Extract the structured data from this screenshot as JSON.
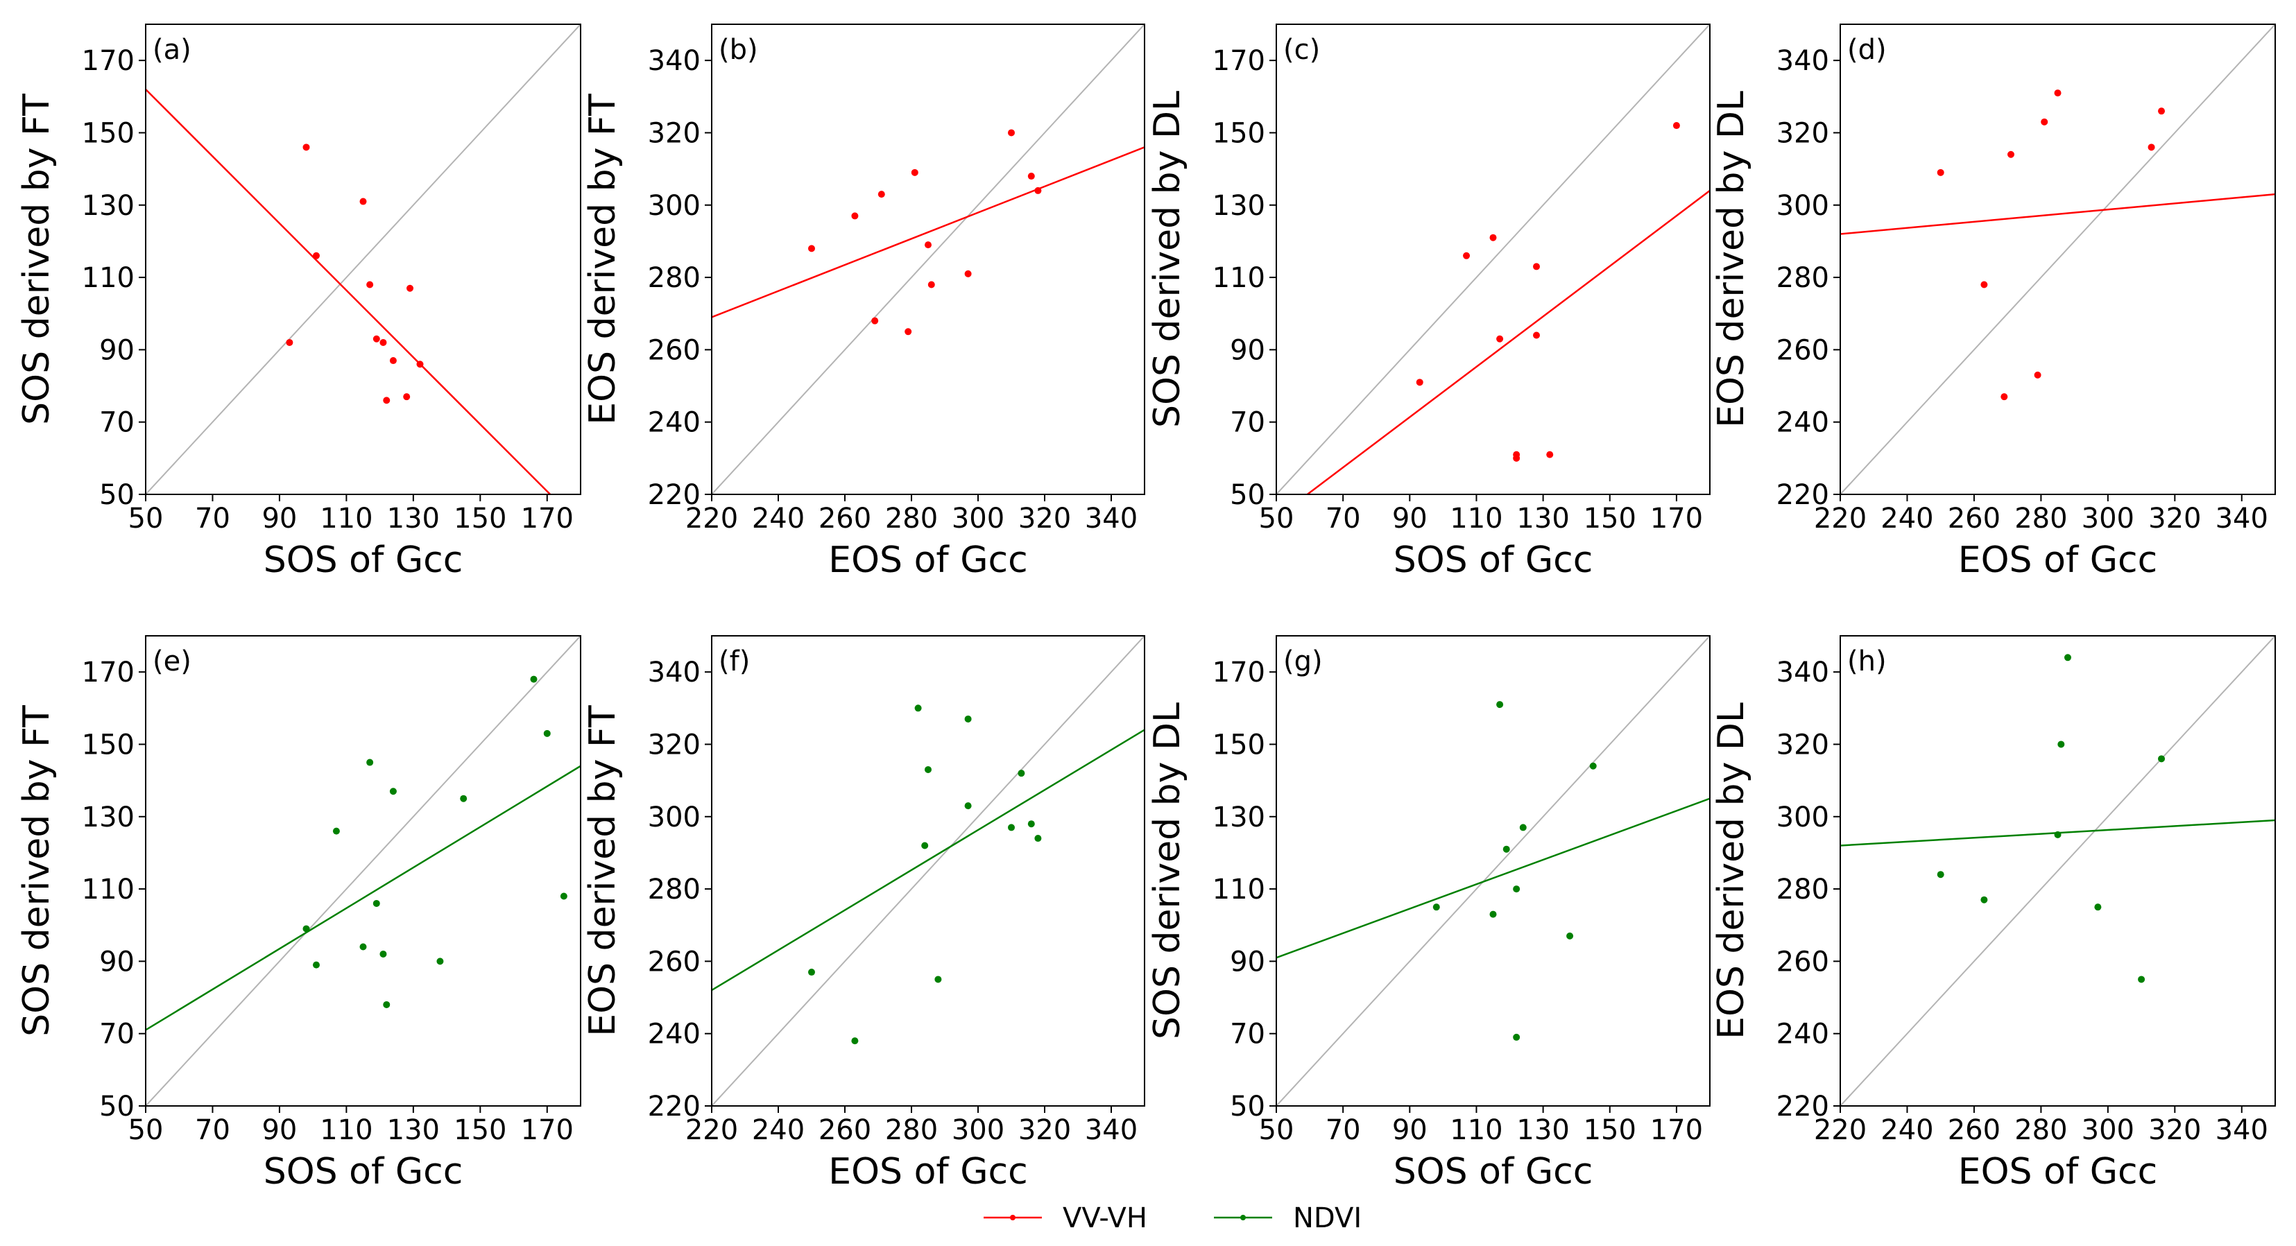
{
  "chart_data": [
    {
      "panel": "(a)",
      "type": "scatter",
      "xlabel": "SOS of Gcc",
      "ylabel": "SOS derived by FT",
      "xlim": [
        50,
        180
      ],
      "ylim": [
        50,
        180
      ],
      "xticks": [
        50,
        70,
        90,
        110,
        130,
        150,
        170
      ],
      "yticks": [
        50,
        70,
        90,
        110,
        130,
        150,
        170
      ],
      "series": "VV-VH",
      "color": "#ff0000",
      "points": [
        [
          93,
          92
        ],
        [
          98,
          146
        ],
        [
          101,
          116
        ],
        [
          115,
          131
        ],
        [
          117,
          108
        ],
        [
          119,
          93
        ],
        [
          121,
          92
        ],
        [
          122,
          76
        ],
        [
          124,
          87
        ],
        [
          128,
          77
        ],
        [
          129,
          107
        ],
        [
          132,
          86
        ]
      ],
      "fit": [
        [
          50,
          162
        ],
        [
          172,
          49
        ]
      ]
    },
    {
      "panel": "(b)",
      "type": "scatter",
      "xlabel": "EOS of Gcc",
      "ylabel": "EOS derived by FT",
      "xlim": [
        220,
        350
      ],
      "ylim": [
        220,
        350
      ],
      "xticks": [
        220,
        240,
        260,
        280,
        300,
        320,
        340
      ],
      "yticks": [
        220,
        240,
        260,
        280,
        300,
        320,
        340
      ],
      "series": "VV-VH",
      "color": "#ff0000",
      "points": [
        [
          250,
          288
        ],
        [
          263,
          297
        ],
        [
          269,
          268
        ],
        [
          271,
          303
        ],
        [
          279,
          265
        ],
        [
          281,
          309
        ],
        [
          285,
          289
        ],
        [
          286,
          278
        ],
        [
          297,
          281
        ],
        [
          310,
          320
        ],
        [
          316,
          308
        ],
        [
          318,
          304
        ]
      ],
      "fit": [
        [
          220,
          269
        ],
        [
          350,
          316
        ]
      ]
    },
    {
      "panel": "(c)",
      "type": "scatter",
      "xlabel": "SOS of Gcc",
      "ylabel": "SOS derived by DL",
      "xlim": [
        50,
        180
      ],
      "ylim": [
        50,
        180
      ],
      "xticks": [
        50,
        70,
        90,
        110,
        130,
        150,
        170
      ],
      "yticks": [
        50,
        70,
        90,
        110,
        130,
        150,
        170
      ],
      "series": "VV-VH",
      "color": "#ff0000",
      "points": [
        [
          93,
          81
        ],
        [
          107,
          116
        ],
        [
          115,
          121
        ],
        [
          117,
          93
        ],
        [
          122,
          61
        ],
        [
          122,
          60
        ],
        [
          128,
          113
        ],
        [
          128,
          94
        ],
        [
          132,
          61
        ],
        [
          170,
          152
        ]
      ],
      "fit": [
        [
          55,
          47
        ],
        [
          180,
          134
        ]
      ]
    },
    {
      "panel": "(d)",
      "type": "scatter",
      "xlabel": "EOS of Gcc",
      "ylabel": "EOS derived by DL",
      "xlim": [
        220,
        350
      ],
      "ylim": [
        220,
        350
      ],
      "xticks": [
        220,
        240,
        260,
        280,
        300,
        320,
        340
      ],
      "yticks": [
        220,
        240,
        260,
        280,
        300,
        320,
        340
      ],
      "series": "VV-VH",
      "color": "#ff0000",
      "points": [
        [
          250,
          309
        ],
        [
          263,
          278
        ],
        [
          269,
          247
        ],
        [
          271,
          314
        ],
        [
          279,
          253
        ],
        [
          281,
          323
        ],
        [
          285,
          331
        ],
        [
          313,
          316
        ],
        [
          316,
          326
        ]
      ],
      "fit": [
        [
          220,
          292
        ],
        [
          350,
          303
        ]
      ]
    },
    {
      "panel": "(e)",
      "type": "scatter",
      "xlabel": "SOS of Gcc",
      "ylabel": "SOS derived by FT",
      "xlim": [
        50,
        180
      ],
      "ylim": [
        50,
        180
      ],
      "xticks": [
        50,
        70,
        90,
        110,
        130,
        150,
        170
      ],
      "yticks": [
        50,
        70,
        90,
        110,
        130,
        150,
        170
      ],
      "series": "NDVI",
      "color": "#008000",
      "points": [
        [
          98,
          99
        ],
        [
          101,
          89
        ],
        [
          107,
          126
        ],
        [
          115,
          94
        ],
        [
          117,
          145
        ],
        [
          119,
          106
        ],
        [
          121,
          92
        ],
        [
          122,
          78
        ],
        [
          124,
          137
        ],
        [
          138,
          90
        ],
        [
          145,
          135
        ],
        [
          166,
          168
        ],
        [
          170,
          153
        ],
        [
          175,
          108
        ]
      ],
      "fit": [
        [
          50,
          71
        ],
        [
          180,
          144
        ]
      ]
    },
    {
      "panel": "(f)",
      "type": "scatter",
      "xlabel": "EOS of Gcc",
      "ylabel": "EOS derived by FT",
      "xlim": [
        220,
        350
      ],
      "ylim": [
        220,
        350
      ],
      "xticks": [
        220,
        240,
        260,
        280,
        300,
        320,
        340
      ],
      "yticks": [
        220,
        240,
        260,
        280,
        300,
        320,
        340
      ],
      "series": "NDVI",
      "color": "#008000",
      "points": [
        [
          250,
          257
        ],
        [
          263,
          238
        ],
        [
          282,
          330
        ],
        [
          284,
          292
        ],
        [
          285,
          313
        ],
        [
          288,
          255
        ],
        [
          297,
          327
        ],
        [
          297,
          303
        ],
        [
          310,
          297
        ],
        [
          313,
          312
        ],
        [
          316,
          298
        ],
        [
          318,
          294
        ]
      ],
      "fit": [
        [
          220,
          252
        ],
        [
          350,
          324
        ]
      ]
    },
    {
      "panel": "(g)",
      "type": "scatter",
      "xlabel": "SOS of Gcc",
      "ylabel": "SOS derived by DL",
      "xlim": [
        50,
        180
      ],
      "ylim": [
        50,
        180
      ],
      "xticks": [
        50,
        70,
        90,
        110,
        130,
        150,
        170
      ],
      "yticks": [
        50,
        70,
        90,
        110,
        130,
        150,
        170
      ],
      "series": "NDVI",
      "color": "#008000",
      "points": [
        [
          98,
          105
        ],
        [
          115,
          103
        ],
        [
          117,
          161
        ],
        [
          119,
          121
        ],
        [
          122,
          110
        ],
        [
          122,
          69
        ],
        [
          124,
          127
        ],
        [
          138,
          97
        ],
        [
          145,
          144
        ]
      ],
      "fit": [
        [
          50,
          91
        ],
        [
          180,
          135
        ]
      ]
    },
    {
      "panel": "(h)",
      "type": "scatter",
      "xlabel": "EOS of Gcc",
      "ylabel": "EOS derived by DL",
      "xlim": [
        220,
        350
      ],
      "ylim": [
        220,
        350
      ],
      "xticks": [
        220,
        240,
        260,
        280,
        300,
        320,
        340
      ],
      "yticks": [
        220,
        240,
        260,
        280,
        300,
        320,
        340
      ],
      "series": "NDVI",
      "color": "#008000",
      "points": [
        [
          250,
          284
        ],
        [
          263,
          277
        ],
        [
          285,
          295
        ],
        [
          286,
          320
        ],
        [
          288,
          344
        ],
        [
          297,
          275
        ],
        [
          310,
          255
        ],
        [
          316,
          316
        ]
      ],
      "fit": [
        [
          220,
          292
        ],
        [
          350,
          299
        ]
      ]
    }
  ],
  "legend": {
    "placement": "bottom-center",
    "items": [
      {
        "label": "VV-VH",
        "color": "#ff0000"
      },
      {
        "label": "NDVI",
        "color": "#008000"
      }
    ]
  },
  "style": {
    "identity_line_color": "#b4b4b4"
  }
}
